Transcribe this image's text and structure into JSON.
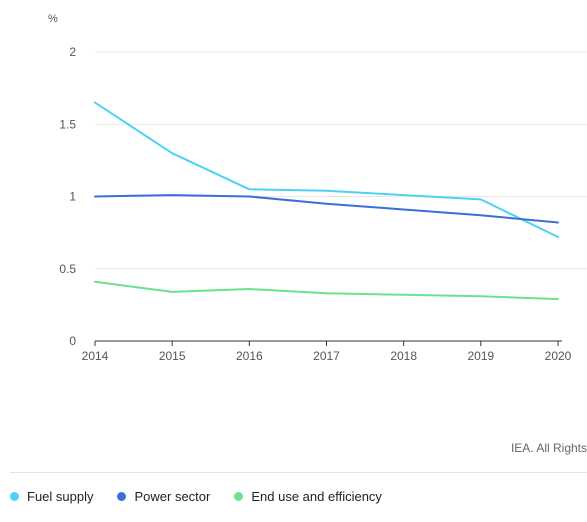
{
  "chart_data": {
    "type": "line",
    "ylabel": "%",
    "x": [
      2014,
      2015,
      2016,
      2017,
      2018,
      2019,
      2020
    ],
    "x_tick_labels": [
      "2014",
      "2015",
      "2016",
      "2017",
      "2018",
      "2019",
      "2020"
    ],
    "y_ticks": [
      0,
      0.5,
      1,
      1.5,
      2
    ],
    "y_tick_labels": [
      "0",
      "0.5",
      "1",
      "1.5",
      "2"
    ],
    "ylim": [
      0,
      2
    ],
    "grid": true,
    "legend_position": "bottom-left",
    "series": [
      {
        "name": "Fuel supply",
        "color": "#4fd1f5",
        "values": [
          1.65,
          1.3,
          1.05,
          1.04,
          1.01,
          0.98,
          0.72
        ]
      },
      {
        "name": "Power sector",
        "color": "#3a6fd8",
        "values": [
          1.0,
          1.01,
          1.0,
          0.95,
          0.91,
          0.87,
          0.82
        ]
      },
      {
        "name": "End use and efficiency",
        "color": "#6be38d",
        "values": [
          0.41,
          0.34,
          0.36,
          0.33,
          0.32,
          0.31,
          0.29
        ]
      }
    ]
  },
  "credit": "IEA. All Rights"
}
